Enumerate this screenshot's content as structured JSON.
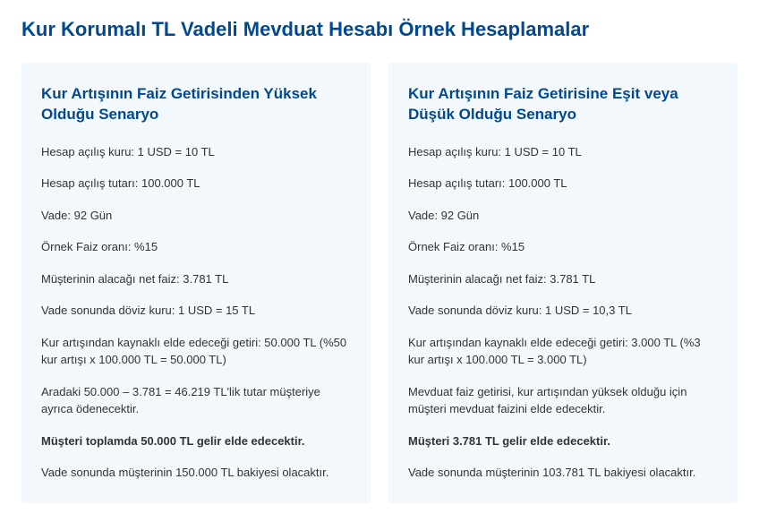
{
  "page_title": "Kur Korumalı TL Vadeli Mevduat Hesabı Örnek Hesaplamalar",
  "colors": {
    "heading": "#004990",
    "card_bg": "#f3f8fd",
    "text": "#333333",
    "page_bg": "#ffffff"
  },
  "cards": [
    {
      "title": "Kur Artışının Faiz Getirisinden Yüksek Olduğu Senaryo",
      "lines": [
        {
          "text": "Hesap açılış kuru: 1 USD = 10 TL",
          "bold": false
        },
        {
          "text": "Hesap açılış tutarı: 100.000 TL",
          "bold": false
        },
        {
          "text": "Vade: 92 Gün",
          "bold": false
        },
        {
          "text": "Örnek Faiz oranı: %15",
          "bold": false
        },
        {
          "text": "Müşterinin alacağı net faiz: 3.781 TL",
          "bold": false
        },
        {
          "text": "Vade sonunda döviz kuru: 1 USD = 15 TL",
          "bold": false
        },
        {
          "text": "Kur artışından kaynaklı elde edeceği getiri: 50.000 TL (%50 kur artışı x 100.000 TL = 50.000 TL)",
          "bold": false
        },
        {
          "text": "Aradaki 50.000 – 3.781 = 46.219 TL'lik tutar müşteriye ayrıca ödenecektir.",
          "bold": false
        },
        {
          "text": "Müşteri toplamda 50.000 TL gelir elde edecektir.",
          "bold": true
        },
        {
          "text": "Vade sonunda müşterinin 150.000 TL bakiyesi olacaktır.",
          "bold": false
        }
      ]
    },
    {
      "title": "Kur Artışının Faiz Getirisine Eşit veya Düşük Olduğu Senaryo",
      "lines": [
        {
          "text": "Hesap açılış kuru: 1 USD = 10 TL",
          "bold": false
        },
        {
          "text": "Hesap açılış tutarı: 100.000 TL",
          "bold": false
        },
        {
          "text": "Vade: 92 Gün",
          "bold": false
        },
        {
          "text": "Örnek Faiz oranı: %15",
          "bold": false
        },
        {
          "text": "Müşterinin alacağı net faiz: 3.781 TL",
          "bold": false
        },
        {
          "text": "Vade sonunda döviz kuru: 1 USD = 10,3 TL",
          "bold": false
        },
        {
          "text": "Kur artışından kaynaklı elde edeceği getiri: 3.000 TL (%3 kur artışı x 100.000 TL = 3.000 TL)",
          "bold": false
        },
        {
          "text": "Mevduat faiz getirisi, kur artışından yüksek olduğu için müşteri mevduat faizini elde edecektir.",
          "bold": false
        },
        {
          "text": "Müşteri 3.781 TL gelir elde edecektir.",
          "bold": true
        },
        {
          "text": "Vade sonunda müşterinin 103.781 TL bakiyesi olacaktır.",
          "bold": false
        }
      ]
    }
  ]
}
